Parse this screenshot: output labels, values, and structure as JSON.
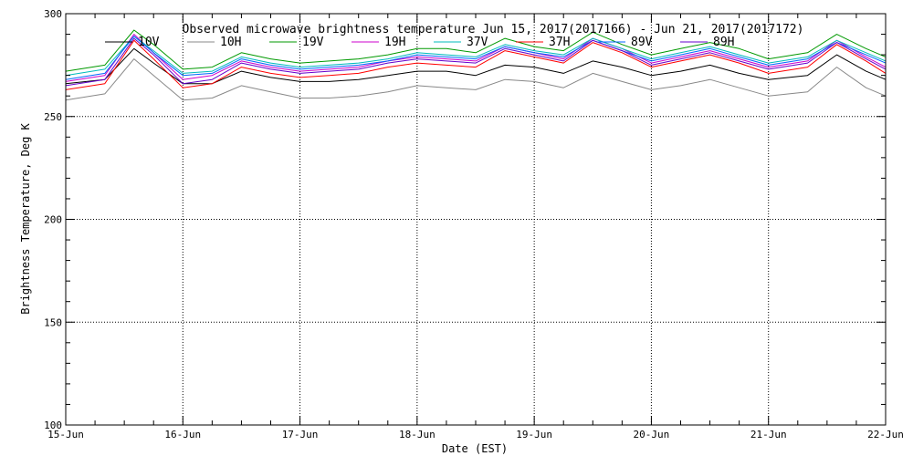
{
  "chart_data": {
    "type": "line",
    "title": "Observed microwave brightness temperature Jun 15, 2017(2017166) - Jun 21, 2017(2017172)",
    "xlabel": "Date (EST)",
    "ylabel": "Brightness Temperature, Deg K",
    "ylim": [
      100,
      300
    ],
    "yticks": [
      100,
      150,
      200,
      250,
      300
    ],
    "xlim": [
      "2017-06-15",
      "2017-06-22"
    ],
    "xticks": [
      "15-Jun",
      "16-Jun",
      "17-Jun",
      "18-Jun",
      "19-Jun",
      "20-Jun",
      "21-Jun",
      "22-Jun"
    ],
    "grid": true,
    "legend_placement": "top",
    "x": [
      "2017-06-15 00:00",
      "2017-06-15 08:00",
      "2017-06-15 14:00",
      "2017-06-15 18:00",
      "2017-06-16 00:00",
      "2017-06-16 06:00",
      "2017-06-16 12:00",
      "2017-06-16 18:00",
      "2017-06-17 00:00",
      "2017-06-17 06:00",
      "2017-06-17 12:00",
      "2017-06-17 18:00",
      "2017-06-18 00:00",
      "2017-06-18 06:00",
      "2017-06-18 12:00",
      "2017-06-18 18:00",
      "2017-06-19 00:00",
      "2017-06-19 06:00",
      "2017-06-19 12:00",
      "2017-06-19 18:00",
      "2017-06-20 00:00",
      "2017-06-20 06:00",
      "2017-06-20 12:00",
      "2017-06-20 18:00",
      "2017-06-21 00:00",
      "2017-06-21 08:00",
      "2017-06-21 14:00",
      "2017-06-21 20:00",
      "2017-06-22 00:00"
    ],
    "series": [
      {
        "name": "10V",
        "color": "#000000",
        "values": [
          266,
          268,
          283,
          276,
          266,
          266,
          272,
          269,
          267,
          267,
          268,
          270,
          272,
          272,
          270,
          275,
          274,
          271,
          277,
          274,
          270,
          272,
          275,
          271,
          268,
          270,
          280,
          272,
          268
        ]
      },
      {
        "name": "10H",
        "color": "#888888",
        "values": [
          258,
          261,
          278,
          270,
          258,
          259,
          265,
          262,
          259,
          259,
          260,
          262,
          265,
          264,
          263,
          268,
          267,
          264,
          271,
          267,
          263,
          265,
          268,
          264,
          260,
          262,
          274,
          264,
          260
        ]
      },
      {
        "name": "19V",
        "color": "#009900",
        "values": [
          272,
          275,
          292,
          285,
          273,
          274,
          281,
          278,
          276,
          277,
          278,
          280,
          283,
          283,
          281,
          288,
          284,
          282,
          291,
          285,
          280,
          283,
          286,
          283,
          278,
          281,
          290,
          283,
          279
        ]
      },
      {
        "name": "19H",
        "color": "#cc00cc",
        "values": [
          267,
          270,
          290,
          281,
          268,
          270,
          277,
          274,
          272,
          273,
          274,
          277,
          279,
          278,
          277,
          284,
          281,
          278,
          288,
          283,
          276,
          279,
          282,
          278,
          274,
          277,
          287,
          279,
          274
        ]
      },
      {
        "name": "37V",
        "color": "#00bbbb",
        "values": [
          270,
          273,
          289,
          282,
          271,
          272,
          279,
          276,
          274,
          275,
          276,
          278,
          281,
          280,
          279,
          285,
          282,
          280,
          288,
          283,
          278,
          281,
          284,
          280,
          276,
          279,
          287,
          281,
          277
        ]
      },
      {
        "name": "37H",
        "color": "#ff0000",
        "values": [
          263,
          266,
          287,
          278,
          264,
          266,
          274,
          271,
          269,
          270,
          271,
          274,
          276,
          275,
          274,
          282,
          279,
          276,
          286,
          281,
          274,
          277,
          280,
          276,
          271,
          274,
          285,
          277,
          271
        ]
      },
      {
        "name": "89V",
        "color": "#0066ff",
        "values": [
          268,
          271,
          289,
          281,
          270,
          271,
          278,
          275,
          273,
          274,
          275,
          277,
          280,
          279,
          278,
          284,
          281,
          279,
          287,
          282,
          277,
          280,
          283,
          279,
          275,
          278,
          286,
          280,
          276
        ]
      },
      {
        "name": "89H",
        "color": "#6600cc",
        "values": [
          265,
          268,
          288,
          280,
          266,
          268,
          276,
          273,
          271,
          272,
          273,
          276,
          278,
          277,
          276,
          283,
          280,
          277,
          287,
          282,
          275,
          278,
          281,
          277,
          273,
          276,
          286,
          278,
          273
        ]
      }
    ]
  }
}
